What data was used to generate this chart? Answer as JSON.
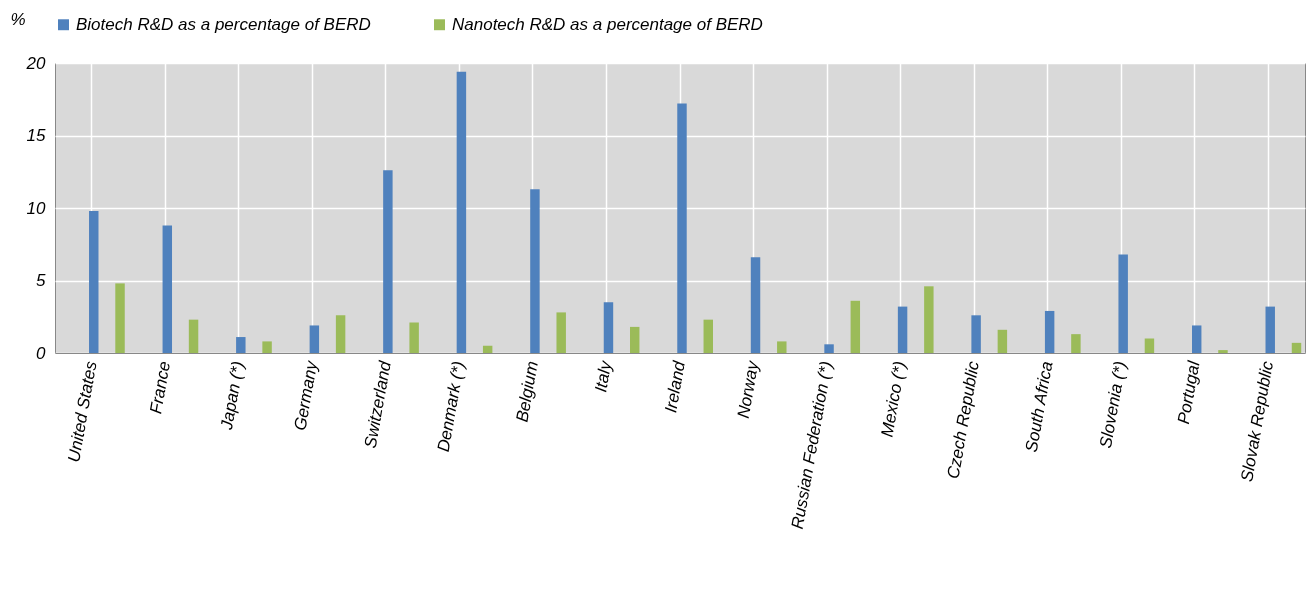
{
  "chart_data": {
    "type": "bar",
    "ylabel": "%",
    "categories": [
      "United States",
      "France",
      "Japan (*)",
      "Germany",
      "Switzerland",
      "Denmark (*)",
      "Belgium",
      "Italy",
      "Ireland",
      "Norway",
      "Russian Federation (*)",
      "Mexico (*)",
      "Czech Republic",
      "South Africa",
      "Slovenia (*)",
      "Portugal",
      "Slovak Republic"
    ],
    "series": [
      {
        "name": "Biotech R&D as a percentage of BERD",
        "color": "#4f81bd",
        "values": [
          9.8,
          8.8,
          1.1,
          1.9,
          12.6,
          19.4,
          11.3,
          3.5,
          17.2,
          6.6,
          0.6,
          3.2,
          2.6,
          2.9,
          6.8,
          1.9,
          3.2
        ]
      },
      {
        "name": "Nanotech R&D as a percentage of BERD",
        "color": "#9bbb59",
        "values": [
          4.8,
          2.3,
          0.8,
          2.6,
          2.1,
          0.5,
          2.8,
          1.8,
          2.3,
          0.8,
          3.6,
          4.6,
          1.6,
          1.3,
          1.0,
          0.2,
          0.7
        ]
      }
    ],
    "ylim": [
      0,
      20
    ],
    "yticks": [
      0,
      5,
      10,
      15,
      20
    ],
    "grid": true,
    "legend": "top"
  }
}
